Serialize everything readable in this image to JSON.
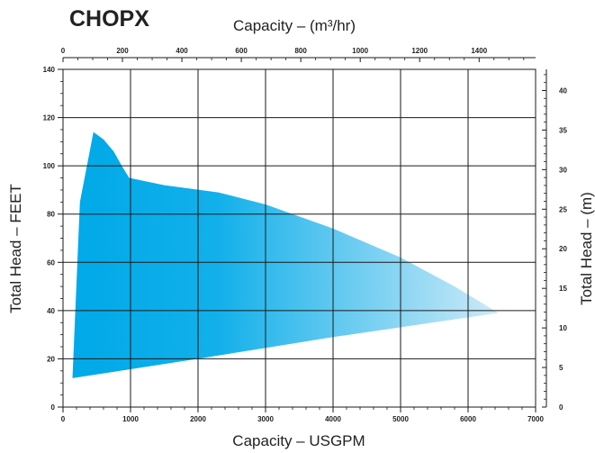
{
  "chart_data": {
    "type": "area",
    "title": "CHOPX",
    "xlabel": "Capacity – USGPM",
    "ylabel": "Total Head – FEET",
    "x2label": "Capacity – (m³/hr)",
    "y2label": "Total Head – (m)",
    "xlim": [
      0,
      7000
    ],
    "ylim": [
      0,
      140
    ],
    "x2lim": [
      0,
      1590
    ],
    "y2lim": [
      0,
      42.67
    ],
    "x_ticks": [
      0,
      1000,
      2000,
      3000,
      4000,
      5000,
      6000,
      7000
    ],
    "y_ticks": [
      0,
      20,
      40,
      60,
      80,
      100,
      120,
      140
    ],
    "x2_ticks": [
      0,
      200,
      400,
      600,
      800,
      1000,
      1200,
      1400
    ],
    "y2_ticks": [
      0,
      5,
      10,
      15,
      20,
      25,
      30,
      35,
      40
    ],
    "grid": true,
    "colors": {
      "start": "#00a9e8",
      "end": "#cdeaf8",
      "grid": "#1a1a1a"
    },
    "series": [
      {
        "upper_curve": [
          {
            "x": 140,
            "y": 12
          },
          {
            "x": 250,
            "y": 85
          },
          {
            "x": 450,
            "y": 114
          },
          {
            "x": 600,
            "y": 111
          },
          {
            "x": 750,
            "y": 106
          },
          {
            "x": 870,
            "y": 100
          },
          {
            "x": 980,
            "y": 95
          },
          {
            "x": 1500,
            "y": 92
          },
          {
            "x": 2300,
            "y": 89
          },
          {
            "x": 3000,
            "y": 84
          },
          {
            "x": 4000,
            "y": 74
          },
          {
            "x": 5000,
            "y": 62
          },
          {
            "x": 5800,
            "y": 50
          },
          {
            "x": 6450,
            "y": 39
          }
        ],
        "lower_curve": [
          {
            "x": 140,
            "y": 12
          },
          {
            "x": 2000,
            "y": 20
          },
          {
            "x": 4000,
            "y": 29
          },
          {
            "x": 6450,
            "y": 39
          }
        ]
      }
    ]
  }
}
